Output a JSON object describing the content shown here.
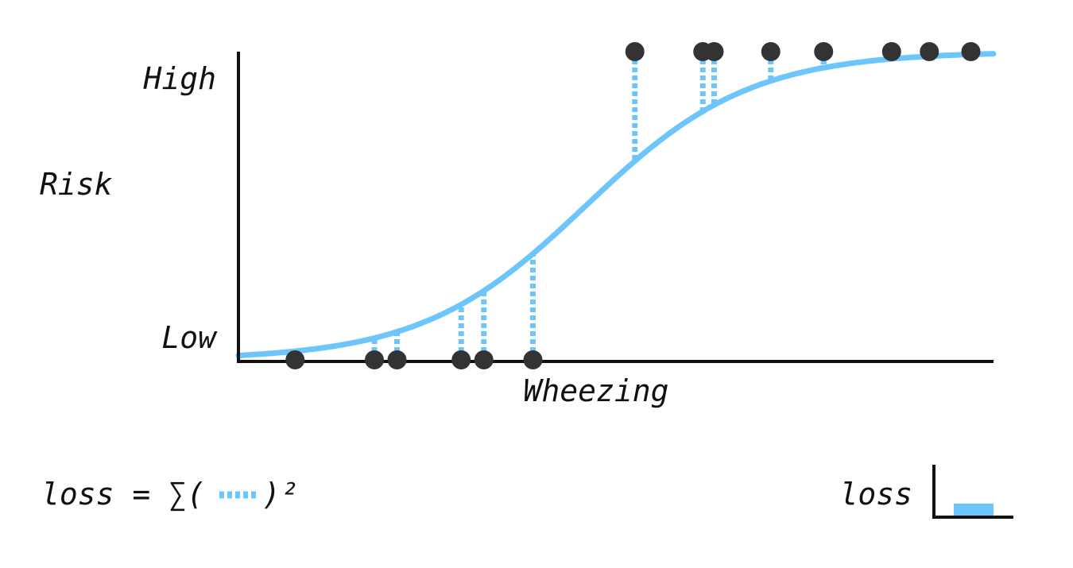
{
  "labels": {
    "y_high": "High",
    "y_low": "Low",
    "y_axis": "Risk",
    "x_axis": "Wheezing"
  },
  "formula": {
    "prefix": "loss = ∑(",
    "suffix": ")²"
  },
  "loss_meter": {
    "label": "loss",
    "level": 0.25
  },
  "colors": {
    "curve": "#6cc5fb",
    "points": "#333333",
    "axes": "#111111"
  },
  "chart_data": {
    "type": "scatter",
    "x_domain": [
      0,
      1
    ],
    "y_domain": [
      0,
      1
    ],
    "curve": "logistic",
    "points": [
      {
        "x": 0.075,
        "y": 0
      },
      {
        "x": 0.18,
        "y": 0
      },
      {
        "x": 0.21,
        "y": 0
      },
      {
        "x": 0.295,
        "y": 0
      },
      {
        "x": 0.325,
        "y": 0
      },
      {
        "x": 0.39,
        "y": 0
      },
      {
        "x": 0.525,
        "y": 1
      },
      {
        "x": 0.615,
        "y": 1
      },
      {
        "x": 0.63,
        "y": 1
      },
      {
        "x": 0.705,
        "y": 1
      },
      {
        "x": 0.775,
        "y": 1
      },
      {
        "x": 0.865,
        "y": 1
      },
      {
        "x": 0.915,
        "y": 1
      },
      {
        "x": 0.97,
        "y": 1
      }
    ]
  }
}
